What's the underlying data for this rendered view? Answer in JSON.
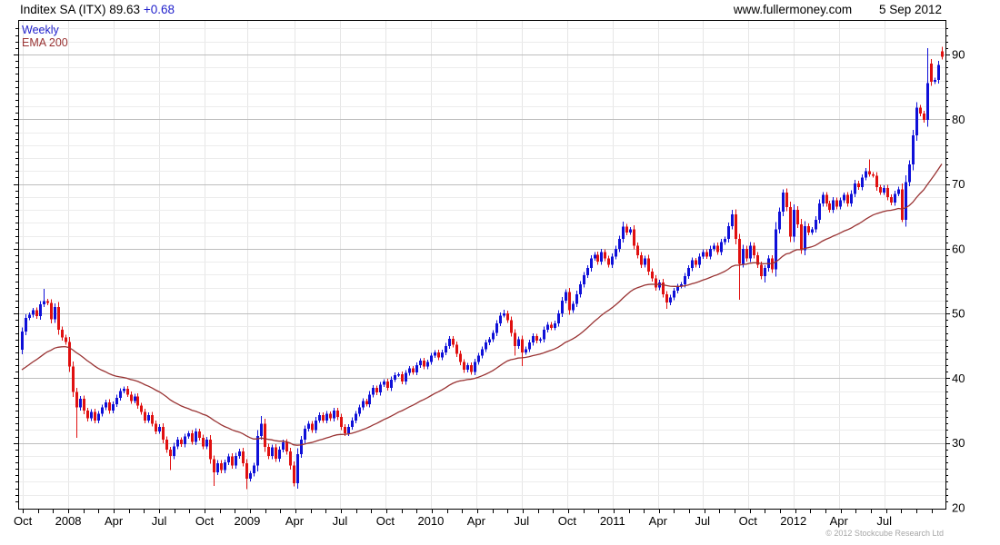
{
  "header": {
    "title": "Inditex SA (ITX) 89.63",
    "change": "+0.68",
    "site": "www.fullermoney.com",
    "date": "5 Sep 2012"
  },
  "legend": {
    "interval": "Weekly",
    "overlay": "EMA 200"
  },
  "footer": {
    "copyright": "© 2012 Stockcube Research Ltd"
  },
  "colors": {
    "up": "#0f10d8",
    "down": "#e01010",
    "ema": "#993333",
    "change_text": "#2222cc",
    "legend_interval": "#2222cc",
    "legend_ema": "#993333",
    "grid_minor": "#ececec",
    "grid_major": "#bdbdbd",
    "grid_vertical": "#e6e6e6",
    "frame": "#000000",
    "axis_text": "#000000"
  },
  "chart_data": {
    "type": "candlestick",
    "title": "Inditex SA (ITX)",
    "interval": "Weekly",
    "overlay": "EMA 200",
    "last_price": 89.63,
    "change": 0.68,
    "date": "5 Sep 2012",
    "ylim": [
      20,
      95.3
    ],
    "y_major_ticks": [
      20,
      30,
      40,
      50,
      60,
      70,
      80,
      90
    ],
    "y_minor_step": 2,
    "y_tick_unit": 1,
    "x_start": "Oct 2007",
    "x_end": "Sep 2012",
    "x_labels": [
      {
        "text": "Oct",
        "f": 0.005
      },
      {
        "text": "2008",
        "f": 0.054
      },
      {
        "text": "Apr",
        "f": 0.103
      },
      {
        "text": "Jul",
        "f": 0.152
      },
      {
        "text": "Oct",
        "f": 0.201
      },
      {
        "text": "2009",
        "f": 0.247
      },
      {
        "text": "Apr",
        "f": 0.298
      },
      {
        "text": "Jul",
        "f": 0.347
      },
      {
        "text": "Oct",
        "f": 0.396
      },
      {
        "text": "2010",
        "f": 0.445
      },
      {
        "text": "Apr",
        "f": 0.494
      },
      {
        "text": "Jul",
        "f": 0.543
      },
      {
        "text": "Oct",
        "f": 0.592
      },
      {
        "text": "2011",
        "f": 0.641
      },
      {
        "text": "Apr",
        "f": 0.69
      },
      {
        "text": "Jul",
        "f": 0.738
      },
      {
        "text": "Oct",
        "f": 0.787
      },
      {
        "text": "2012",
        "f": 0.836
      },
      {
        "text": "Apr",
        "f": 0.885
      },
      {
        "text": "Jul",
        "f": 0.934
      }
    ],
    "months_per_label": 3,
    "first_open": 44.4,
    "ema_period_days": 200,
    "ema_weeks": 40,
    "ema_seed": 41.0,
    "closes": [
      47.2,
      49.3,
      49.8,
      50.5,
      49.6,
      51.4,
      51.9,
      51.6,
      49.1,
      51.0,
      47.5,
      46.3,
      45.6,
      41.8,
      37.9,
      35.5,
      36.8,
      35.0,
      33.8,
      34.8,
      33.5,
      34.5,
      35.5,
      36.3,
      35.0,
      36.0,
      37.0,
      38.0,
      38.4,
      37.5,
      36.5,
      37.2,
      35.8,
      34.8,
      33.5,
      34.3,
      33.0,
      31.8,
      32.5,
      30.5,
      29.0,
      28.0,
      29.5,
      30.5,
      29.8,
      31.0,
      31.5,
      30.2,
      31.8,
      30.8,
      29.5,
      30.5,
      27.5,
      25.5,
      26.9,
      25.8,
      27.0,
      27.9,
      26.5,
      28.0,
      28.7,
      26.9,
      24.5,
      25.3,
      26.5,
      31.1,
      33.0,
      29.4,
      28.0,
      29.3,
      27.6,
      29.0,
      30.1,
      28.7,
      26.5,
      23.8,
      28.3,
      30.5,
      32.2,
      33.0,
      32.0,
      33.5,
      34.3,
      33.5,
      34.5,
      33.8,
      35.0,
      34.0,
      32.5,
      31.5,
      32.5,
      33.5,
      34.5,
      35.5,
      36.5,
      36.0,
      37.5,
      38.5,
      37.8,
      39.0,
      39.5,
      38.5,
      39.8,
      40.5,
      40.6,
      39.5,
      40.8,
      41.5,
      40.9,
      42.0,
      42.7,
      41.8,
      42.5,
      43.5,
      44.0,
      43.2,
      44.0,
      45.0,
      46.1,
      45.2,
      43.8,
      42.5,
      41.3,
      42.0,
      41.0,
      42.5,
      43.5,
      44.5,
      45.5,
      46.0,
      47.0,
      48.5,
      49.7,
      50.0,
      49.0,
      47.0,
      45.0,
      46.0,
      44.0,
      44.5,
      45.5,
      46.5,
      45.8,
      46.0,
      47.5,
      48.3,
      47.8,
      48.5,
      50.0,
      52.0,
      53.3,
      50.5,
      51.5,
      53.0,
      54.5,
      55.9,
      57.0,
      58.5,
      59.1,
      58.0,
      59.5,
      58.5,
      57.5,
      58.8,
      60.0,
      61.5,
      63.4,
      62.5,
      63.0,
      60.5,
      59.0,
      57.5,
      58.5,
      56.5,
      55.4,
      54.0,
      54.8,
      53.0,
      51.7,
      52.5,
      53.5,
      54.2,
      54.5,
      55.8,
      57.0,
      58.2,
      57.5,
      58.8,
      59.5,
      58.8,
      60.0,
      60.5,
      59.5,
      61.0,
      61.5,
      63.5,
      65.3,
      61.5,
      57.7,
      60.0,
      58.5,
      60.5,
      59.0,
      57.5,
      55.8,
      57.0,
      58.5,
      56.8,
      63.0,
      65.7,
      68.7,
      66.4,
      61.9,
      66.0,
      63.8,
      59.8,
      63.5,
      62.5,
      63.0,
      64.5,
      67.0,
      68.3,
      67.0,
      66.0,
      67.5,
      66.5,
      67.5,
      68.3,
      67.0,
      68.5,
      70.1,
      69.5,
      71.0,
      72.0,
      71.5,
      71.3,
      69.5,
      68.7,
      69.4,
      68.0,
      67.1,
      68.5,
      69.2,
      64.5,
      70.3,
      73.0,
      77.5,
      81.8,
      80.9,
      79.9,
      85.6,
      85.8,
      86.1,
      88.4,
      89.63
    ],
    "wick_overrides": {
      "6": {
        "hi": 53.8
      },
      "15": {
        "lo": 30.8
      },
      "41": {
        "lo": 25.8
      },
      "53": {
        "lo": 23.4
      },
      "62": {
        "lo": 22.9
      },
      "66": {
        "hi": 34.2
      },
      "75": {
        "lo": 23.3
      },
      "133": {
        "hi": 50.6
      },
      "136": {
        "lo": 43.5
      },
      "138": {
        "lo": 41.9
      },
      "166": {
        "hi": 64.2
      },
      "178": {
        "lo": 50.7
      },
      "196": {
        "hi": 66.0
      },
      "198": {
        "lo": 52.1
      },
      "205": {
        "lo": 54.8
      },
      "210": {
        "hi": 69.2
      },
      "215": {
        "lo": 59.2
      },
      "234": {
        "hi": 73.8
      },
      "243": {
        "lo": 64.1
      },
      "250": {
        "hi": 91.0
      },
      "254": {
        "hi": 91.2
      }
    },
    "open_overrides": {
      "251": 88.6,
      "254": 90.5
    }
  }
}
